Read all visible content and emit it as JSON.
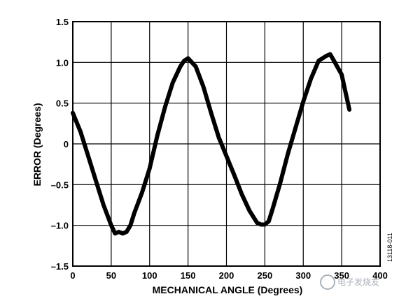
{
  "chart_data": {
    "type": "line",
    "title": "",
    "xlabel": "MECHANICAL ANGLE (Degrees)",
    "ylabel": "ERROR (Degrees)",
    "xlim": [
      0,
      400
    ],
    "ylim": [
      -1.5,
      1.5
    ],
    "x_ticks": [
      0,
      50,
      100,
      150,
      200,
      250,
      300,
      350,
      400
    ],
    "y_ticks": [
      1.5,
      1.0,
      0.5,
      0,
      -0.5,
      -1.0,
      -1.5
    ],
    "x_tick_labels": [
      "0",
      "50",
      "100",
      "150",
      "200",
      "250",
      "300",
      "350",
      "400"
    ],
    "y_tick_labels": [
      "1.5",
      "1.0",
      "0.5",
      "0",
      "–0.5",
      "–1.0",
      "–1.5"
    ],
    "grid": true,
    "figure_id": "13118-011",
    "series": [
      {
        "color": "#000000",
        "x": [
          0,
          10,
          20,
          30,
          40,
          50,
          55,
          60,
          65,
          70,
          75,
          80,
          90,
          100,
          110,
          120,
          130,
          140,
          145,
          150,
          155,
          160,
          170,
          180,
          190,
          200,
          210,
          220,
          230,
          240,
          245,
          250,
          255,
          260,
          270,
          280,
          290,
          300,
          310,
          320,
          325,
          330,
          335,
          340,
          350,
          360
        ],
        "y": [
          0.38,
          0.15,
          -0.15,
          -0.45,
          -0.75,
          -1.0,
          -1.1,
          -1.08,
          -1.1,
          -1.08,
          -1.0,
          -0.85,
          -0.6,
          -0.3,
          0.1,
          0.45,
          0.75,
          0.95,
          1.02,
          1.05,
          1.0,
          0.95,
          0.7,
          0.38,
          0.08,
          -0.15,
          -0.38,
          -0.62,
          -0.82,
          -0.97,
          -0.99,
          -0.99,
          -0.95,
          -0.8,
          -0.48,
          -0.12,
          0.2,
          0.52,
          0.8,
          1.02,
          1.05,
          1.08,
          1.1,
          1.02,
          0.85,
          0.42
        ]
      }
    ]
  },
  "watermark": "电子发烧友"
}
